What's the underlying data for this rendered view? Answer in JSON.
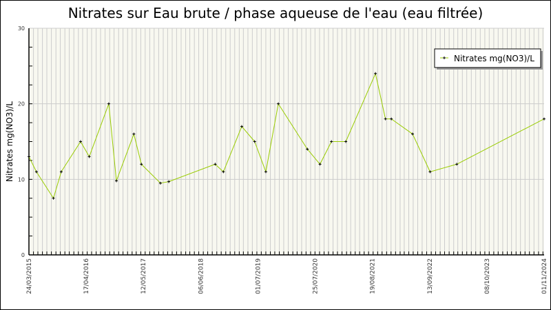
{
  "chart_data": {
    "type": "line",
    "title": "Nitrates sur Eau brute / phase aqueuse de l'eau (eau filtrée)",
    "xlabel": "",
    "ylabel": "Nitrates mg(NO3)/L",
    "ylim": [
      0,
      30
    ],
    "xlim": [
      "2015-03-24",
      "2024-11-01"
    ],
    "y_ticks": [
      "0",
      "10",
      "20",
      "30"
    ],
    "x_ticks": [
      "24/03/2015",
      "17/04/2016",
      "12/05/2017",
      "06/06/2018",
      "01/07/2019",
      "25/07/2020",
      "19/08/2021",
      "13/09/2022",
      "08/10/2023",
      "01/11/2024"
    ],
    "x_tick_dates": [
      "2015-03-24",
      "2016-04-17",
      "2017-05-12",
      "2018-06-06",
      "2019-07-01",
      "2020-07-25",
      "2021-08-19",
      "2022-09-13",
      "2023-10-08",
      "2024-11-01"
    ],
    "grid": true,
    "legend_position": "top-right",
    "colors": {
      "line": "#99cc00",
      "marker": "#000000",
      "plot_bg": "#f8f8f0",
      "grid": "#cccccc"
    },
    "series": [
      {
        "name": "Nitrates mg(NO3)/L",
        "x": [
          "2015-03-24",
          "2015-05-14",
          "2015-09-07",
          "2015-10-30",
          "2016-03-10",
          "2016-05-08",
          "2016-09-18",
          "2016-11-09",
          "2017-03-08",
          "2017-04-28",
          "2017-09-05",
          "2017-11-01",
          "2018-09-13",
          "2018-11-08",
          "2019-03-13",
          "2019-06-09",
          "2019-08-24",
          "2019-11-17",
          "2020-06-02",
          "2020-08-27",
          "2020-11-13",
          "2021-02-19",
          "2021-09-09",
          "2021-11-16",
          "2021-12-26",
          "2022-05-20",
          "2022-09-16",
          "2023-03-17",
          "2024-11-01"
        ],
        "values": [
          13,
          11,
          7.5,
          11,
          15,
          13,
          20,
          9.8,
          16,
          12,
          9.5,
          9.7,
          12,
          11,
          17,
          15,
          11,
          20,
          14,
          12,
          15,
          15,
          24,
          18,
          18,
          16,
          11,
          12,
          18
        ]
      }
    ]
  }
}
